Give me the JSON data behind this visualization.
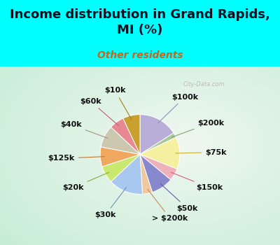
{
  "title": "Income distribution in Grand Rapids,\nMI (%)",
  "subtitle": "Other residents",
  "labels": [
    "$100k",
    "$200k",
    "$75k",
    "$150k",
    "$50k",
    "> $200k",
    "$30k",
    "$20k",
    "$125k",
    "$40k",
    "$60k",
    "$10k"
  ],
  "sizes": [
    16,
    2,
    13,
    5,
    9,
    4,
    14,
    7,
    8,
    9,
    6,
    7
  ],
  "colors": [
    "#b8aed8",
    "#a8c898",
    "#f5f0a0",
    "#f0b0bc",
    "#8888cc",
    "#f0c8a0",
    "#a8c8f0",
    "#c8e870",
    "#f0a860",
    "#ccc8b0",
    "#e88890",
    "#c8a030"
  ],
  "line_colors": [
    "#9090c0",
    "#80a870",
    "#c8b030",
    "#d06080",
    "#6060a8",
    "#c09050",
    "#7090c0",
    "#90a840",
    "#c07830",
    "#a09880",
    "#c06070",
    "#a08020"
  ],
  "title_fontsize": 13,
  "subtitle_fontsize": 10,
  "label_fontsize": 8.0,
  "bg_cyan": "#00FFFF",
  "bg_panel": "#d8f0e0",
  "watermark": "City-Data.com"
}
